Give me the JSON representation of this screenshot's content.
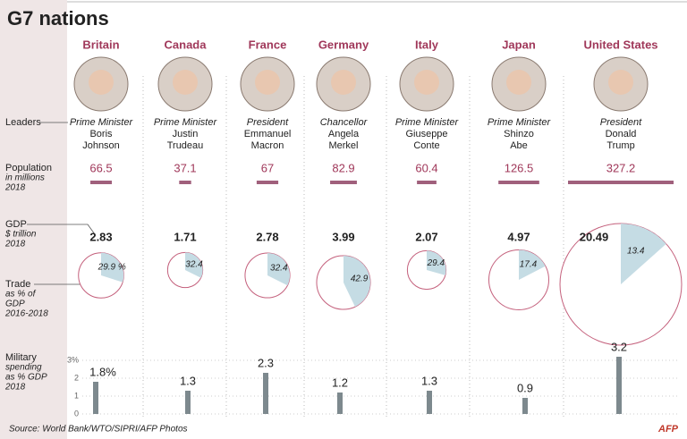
{
  "chart_data": {
    "type": "infographic",
    "title": "G7 nations",
    "countries": [
      "Britain",
      "Canada",
      "France",
      "Germany",
      "Italy",
      "Japan",
      "United States"
    ],
    "leaders": {
      "label": "Leaders",
      "titles": [
        "Prime Minister",
        "Prime Minister",
        "President",
        "Chancellor",
        "Prime Minister",
        "Prime Minister",
        "President"
      ],
      "first_names": [
        "Boris",
        "Justin",
        "Emmanuel",
        "Angela",
        "Giuseppe",
        "Shinzo",
        "Donald"
      ],
      "last_names": [
        "Johnson",
        "Trudeau",
        "Macron",
        "Merkel",
        "Conte",
        "Abe",
        "Trump"
      ]
    },
    "population": {
      "label": [
        "Population",
        "in millions",
        "2018"
      ],
      "values": [
        66.5,
        37.1,
        67,
        82.9,
        60.4,
        126.5,
        327.2
      ],
      "color": "#a0607c"
    },
    "gdp": {
      "label": [
        "GDP",
        "$ trillion",
        "2018"
      ],
      "values": [
        2.83,
        1.71,
        2.78,
        3.99,
        2.07,
        4.97,
        20.49
      ],
      "color": "#c4607c"
    },
    "trade": {
      "label": [
        "Trade",
        "as % of",
        "GDP",
        "2016-2018"
      ],
      "values": [
        29.9,
        32.4,
        32.4,
        42.9,
        29.4,
        17.4,
        13.4
      ],
      "value_labels": [
        "29.9 %",
        "32.4",
        "32.4",
        "42.9",
        "29.4",
        "17.4",
        "13.4"
      ],
      "color": "#c5dce4"
    },
    "military": {
      "label": [
        "Military",
        "spending",
        "as % GDP",
        "2018"
      ],
      "values": [
        1.8,
        1.3,
        2.3,
        1.2,
        1.3,
        0.9,
        3.2
      ],
      "value_labels": [
        "1.8%",
        "1.3",
        "2.3",
        "1.2",
        "1.3",
        "0.9",
        "3.2"
      ],
      "ylim": [
        0,
        3
      ],
      "yticks": [
        0,
        1,
        2,
        {
          "value": 3,
          "label": "3%"
        }
      ],
      "color": "#7d898e"
    },
    "source": "Source: World Bank/WTO/SIPRI/AFP Photos",
    "credit": "AFP"
  }
}
